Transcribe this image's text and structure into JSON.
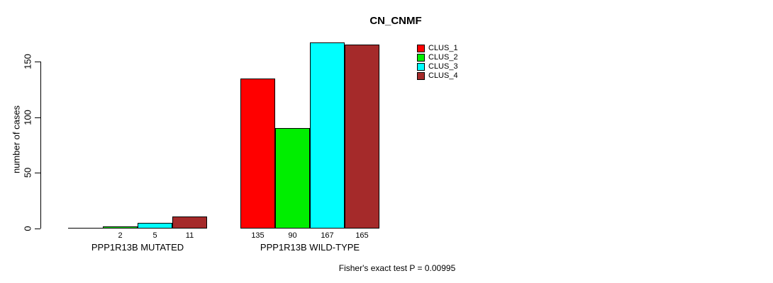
{
  "chart_data": {
    "type": "bar",
    "title": "CN_CNMF",
    "xlabel": "",
    "ylabel": "number of cases",
    "ylim": [
      0,
      170
    ],
    "yticks": [
      0,
      50,
      100,
      150
    ],
    "grid": false,
    "legend_position": "top-right",
    "categories": [
      "PPP1R13B MUTATED",
      "PPP1R13B WILD-TYPE"
    ],
    "series": [
      {
        "name": "CLUS_1",
        "color": "#ff0000",
        "values": [
          0,
          135
        ]
      },
      {
        "name": "CLUS_2",
        "color": "#00ee00",
        "values": [
          2,
          90
        ]
      },
      {
        "name": "CLUS_3",
        "color": "#00ffff",
        "values": [
          5,
          167
        ]
      },
      {
        "name": "CLUS_4",
        "color": "#a52a2a",
        "values": [
          11,
          165
        ]
      }
    ],
    "value_labels": [
      [
        "",
        "2",
        "5",
        "11"
      ],
      [
        "135",
        "90",
        "167",
        "165"
      ]
    ],
    "annotation": "Fisher's exact test P = 0.00995"
  }
}
